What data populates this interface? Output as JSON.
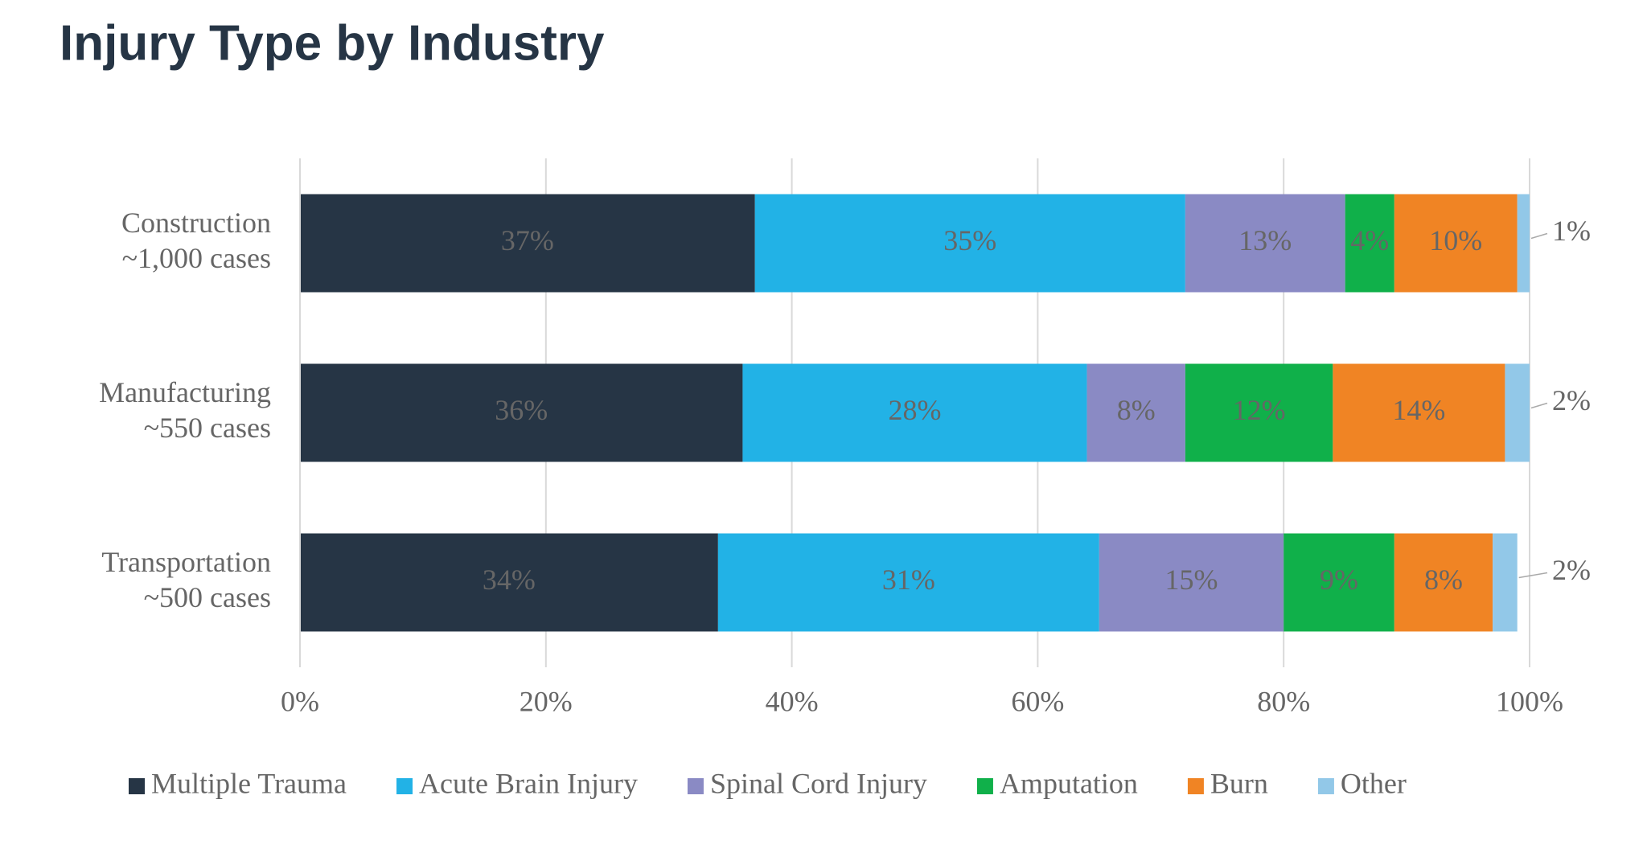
{
  "chart_data": {
    "type": "stacked-bar-horizontal",
    "title": "Injury Type by Industry",
    "categories": [
      [
        "Construction",
        "~1,000 cases"
      ],
      [
        "Manufacturing",
        "~550 cases"
      ],
      [
        "Transportation",
        "~500 cases"
      ]
    ],
    "series": [
      {
        "name": "Multiple Trauma",
        "color": "#263545",
        "values": [
          37,
          36,
          34
        ],
        "value_labels": [
          "37%",
          "36%",
          "34%"
        ]
      },
      {
        "name": "Acute Brain Injury",
        "color": "#22b2e6",
        "values": [
          35,
          28,
          31
        ],
        "value_labels": [
          "35%",
          "28%",
          "31%"
        ]
      },
      {
        "name": "Spinal Cord Injury",
        "color": "#8a8ac4",
        "values": [
          13,
          8,
          15
        ],
        "value_labels": [
          "13%",
          "8%",
          "15%"
        ]
      },
      {
        "name": "Amputation",
        "color": "#10b04a",
        "values": [
          4,
          12,
          9
        ],
        "value_labels": [
          "4%",
          "12%",
          "9%"
        ]
      },
      {
        "name": "Burn",
        "color": "#f08424",
        "values": [
          10,
          14,
          8
        ],
        "value_labels": [
          "10%",
          "14%",
          "8%"
        ]
      },
      {
        "name": "Other",
        "color": "#92c8e8",
        "values": [
          1,
          2,
          2
        ],
        "value_labels": [
          "1%",
          "2%",
          "2%"
        ]
      }
    ],
    "xlim": [
      0,
      100
    ],
    "xticks": [
      {
        "value": 0,
        "label": "0%"
      },
      {
        "value": 20,
        "label": "20%"
      },
      {
        "value": 40,
        "label": "40%"
      },
      {
        "value": 60,
        "label": "60%"
      },
      {
        "value": 80,
        "label": "80%"
      },
      {
        "value": 100,
        "label": "100%"
      }
    ],
    "grid": true,
    "legend": "bottom"
  }
}
